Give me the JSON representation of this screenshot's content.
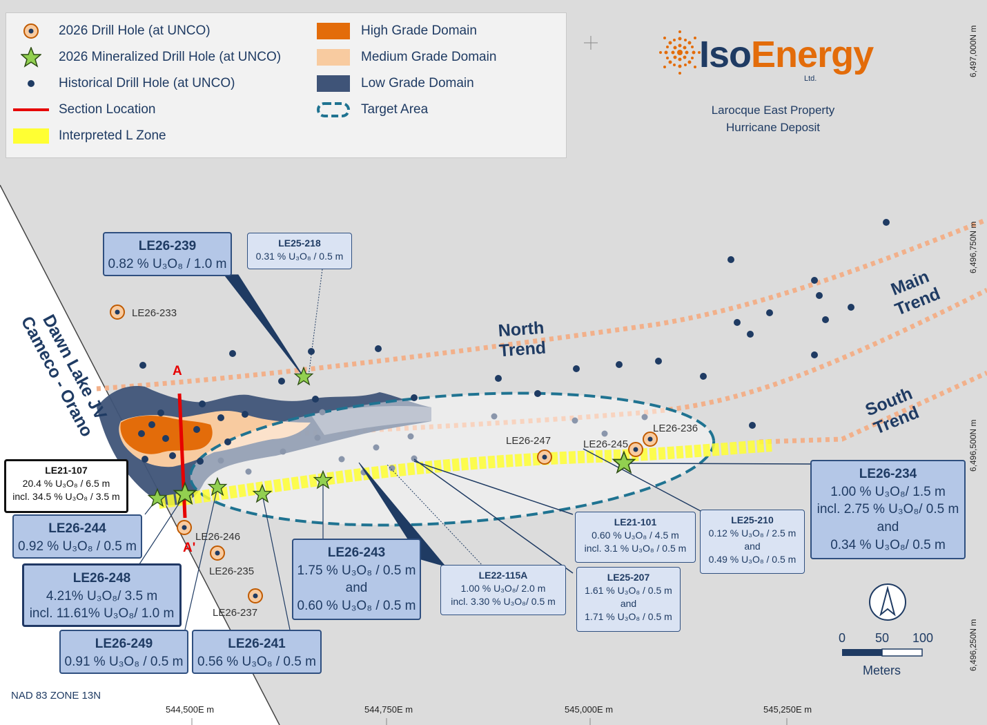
{
  "legend": {
    "items": [
      {
        "label": "2026 Drill Hole (at UNCO)",
        "symbol": "orange-target"
      },
      {
        "label": "2026 Mineralized Drill Hole (at UNCO)",
        "symbol": "green-star"
      },
      {
        "label": "Historical Drill Hole (at UNCO)",
        "symbol": "navy-dot"
      },
      {
        "label": "Section Location",
        "symbol": "red-line"
      },
      {
        "label": "Interpreted L Zone",
        "symbol": "yellow-band"
      },
      {
        "label": "High Grade Domain",
        "symbol": "orange-fill"
      },
      {
        "label": "Medium Grade Domain",
        "symbol": "peach-fill"
      },
      {
        "label": "Low Grade Domain",
        "symbol": "navy-fill"
      },
      {
        "label": "Target Area",
        "symbol": "dashed-ellipse"
      }
    ]
  },
  "logo": {
    "name_iso": "Iso",
    "name_energy": "Energy",
    "ltd": "Ltd."
  },
  "property": {
    "line1": "Larocque East Property",
    "line2": "Hurricane Deposit"
  },
  "trends": {
    "north": [
      "North",
      "Trend"
    ],
    "main": [
      "Main",
      "Trend"
    ],
    "south": [
      "South",
      "Trend"
    ]
  },
  "jv": [
    "Dawn Lake JV",
    "Cameco - Orano"
  ],
  "section": {
    "start": "A",
    "end": "A'"
  },
  "hole_labels": {
    "le26_233": "LE26-233",
    "le26_247": "LE26-247",
    "le26_245": "LE26-245",
    "le26_236": "LE26-236",
    "le26_246": "LE26-246",
    "le26_235": "LE26-235",
    "le26_237": "LE26-237"
  },
  "callouts": {
    "le26_239": {
      "title": "LE26-239",
      "lines": [
        "0.82 % U₃O₈ / 1.0 m"
      ]
    },
    "le25_218": {
      "title": "LE25-218",
      "lines": [
        "0.31 % U₃O₈ / 0.5 m"
      ]
    },
    "le21_107": {
      "title": "LE21-107",
      "lines": [
        "20.4 % U₃O₈ / 6.5 m",
        "incl. 34.5 % U₃O₈ / 3.5 m"
      ]
    },
    "le26_244": {
      "title": "LE26-244",
      "lines": [
        "0.92 % U₃O₈ / 0.5 m"
      ]
    },
    "le26_248": {
      "title": "LE26-248",
      "lines": [
        "4.21% U₃O₈/ 3.5 m",
        "incl. 11.61% U₃O₈/ 1.0 m"
      ]
    },
    "le26_249": {
      "title": "LE26-249",
      "lines": [
        "0.91 % U₃O₈ / 0.5 m"
      ]
    },
    "le26_241": {
      "title": "LE26-241",
      "lines": [
        "0.56 % U₃O₈ / 0.5 m"
      ]
    },
    "le26_243": {
      "title": "LE26-243",
      "lines": [
        "1.75 % U₃O₈ / 0.5 m",
        "and",
        "0.60 % U₃O₈ / 0.5 m"
      ]
    },
    "le22_115a": {
      "title": "LE22-115A",
      "lines": [
        "1.00 % U₃O₈/ 2.0 m",
        "incl. 3.30 % U₃O₈/ 0.5 m"
      ]
    },
    "le21_101": {
      "title": "LE21-101",
      "lines": [
        "0.60 % U₃O₈ / 4.5 m",
        "incl. 3.1 % U₃O₈ / 0.5 m"
      ]
    },
    "le25_207": {
      "title": "LE25-207",
      "lines": [
        "1.61 % U₃O₈ / 0.5 m",
        "and",
        "1.71 % U₃O₈ / 0.5 m"
      ]
    },
    "le25_210": {
      "title": "LE25-210",
      "lines": [
        "0.12 % U₃O₈ / 2.5 m",
        "and",
        "0.49 % U₃O₈ / 0.5 m"
      ]
    },
    "le26_234": {
      "title": "LE26-234",
      "lines": [
        "1.00 % U₃O₈/ 1.5 m",
        "incl. 2.75 % U₃O₈/ 0.5 m",
        "and",
        "0.34 % U₃O₈/ 0.5 m"
      ]
    }
  },
  "grid": {
    "easting": [
      "544,500E m",
      "544,750E m",
      "545,000E m",
      "545,250E m"
    ],
    "northing": [
      "6,497,000N m",
      "6,496,750N m",
      "6,496,500N m",
      "6,496,250N m"
    ]
  },
  "scale": {
    "ticks": [
      "0",
      "50",
      "100"
    ],
    "unit": "Meters"
  },
  "datum": "NAD 83 ZONE 13N",
  "colors": {
    "navy": "#1f3b63",
    "orange": "#e36c0a",
    "peach": "#f8cba0",
    "yellow": "#ffff33",
    "green": "#92d050",
    "teal": "#1f7391",
    "red": "#e60000"
  }
}
